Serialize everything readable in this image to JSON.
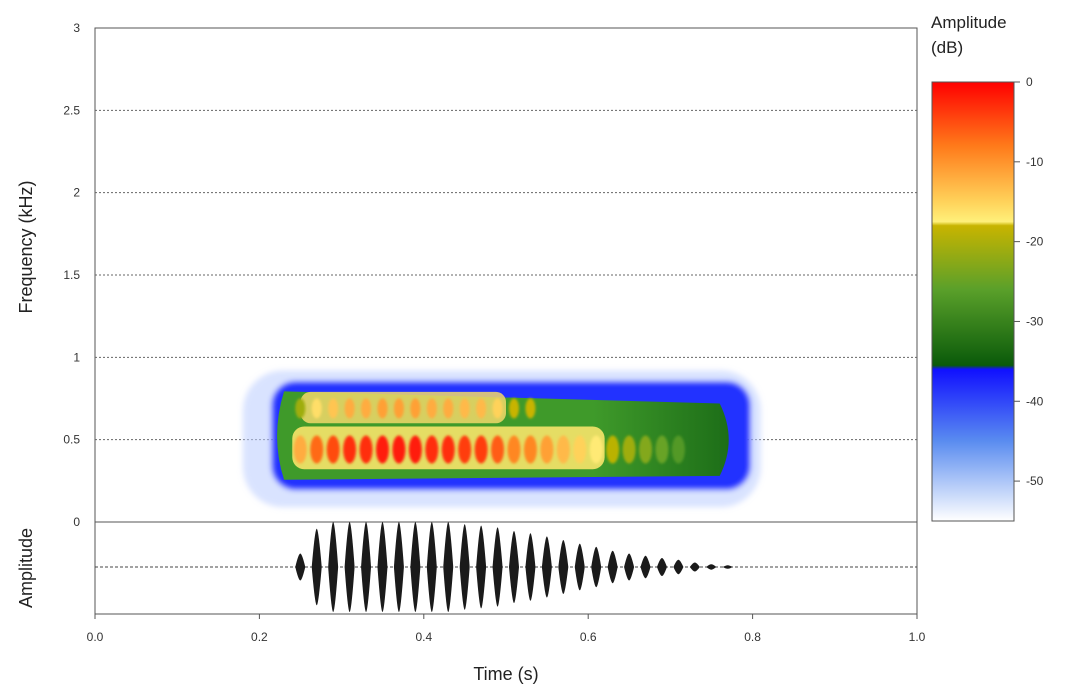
{
  "chart_data": [
    {
      "type": "heatmap",
      "subtype": "spectrogram",
      "xlabel": "Time (s)",
      "ylabel": "Frequency (kHz)",
      "xlim": [
        0.0,
        1.0
      ],
      "ylim": [
        0,
        3
      ],
      "x_ticks": [
        "0.0",
        "0.2",
        "0.4",
        "0.6",
        "0.8",
        "1.0"
      ],
      "y_ticks": [
        "0",
        "0.5",
        "1",
        "1.5",
        "2",
        "2.5",
        "3"
      ],
      "y_gridlines": "dotted at each y tick",
      "bands": [
        {
          "frequency_khz": 0.5,
          "t_start": 0.23,
          "t_end": 0.79
        },
        {
          "frequency_khz": 0.7,
          "t_start": 0.25,
          "t_end": 0.75
        }
      ],
      "pulse_times": [
        0.24,
        0.26,
        0.28,
        0.3,
        0.32,
        0.34,
        0.36,
        0.38,
        0.4,
        0.42,
        0.44,
        0.46,
        0.48,
        0.5,
        0.52,
        0.54,
        0.56,
        0.58,
        0.6,
        0.62,
        0.64,
        0.66,
        0.68,
        0.7
      ],
      "pulse_peak_db": [
        -12,
        -7,
        -5,
        -3,
        -3,
        -2,
        -2,
        -2,
        -3,
        -3,
        -4,
        -4,
        -6,
        -9,
        -9,
        -11,
        -13,
        -15,
        -17,
        -19,
        -21,
        -23,
        -25,
        -27
      ]
    },
    {
      "type": "line",
      "subtype": "waveform",
      "ylabel": "Amplitude",
      "xlim": [
        0.0,
        1.0
      ],
      "pulse_times": [
        0.24,
        0.26,
        0.28,
        0.3,
        0.32,
        0.34,
        0.36,
        0.38,
        0.4,
        0.42,
        0.44,
        0.46,
        0.48,
        0.5,
        0.52,
        0.54,
        0.56,
        0.58,
        0.6,
        0.62,
        0.64,
        0.66,
        0.68,
        0.7,
        0.72,
        0.74,
        0.76
      ],
      "pulse_amplitude": [
        0.3,
        0.85,
        1.0,
        1.0,
        1.0,
        1.0,
        1.0,
        1.0,
        1.0,
        1.0,
        0.95,
        0.92,
        0.88,
        0.8,
        0.75,
        0.68,
        0.6,
        0.52,
        0.45,
        0.36,
        0.3,
        0.25,
        0.2,
        0.16,
        0.1,
        0.06,
        0.04
      ]
    },
    {
      "type": "colorbar",
      "label": "Amplitude (dB)",
      "label_lines": [
        "Amplitude",
        "(dB)"
      ],
      "range": [
        -55,
        0
      ],
      "ticks": [
        "0",
        "-10",
        "-20",
        "-30",
        "-40",
        "-50"
      ],
      "colormap": [
        {
          "db": 0,
          "color": "#ff0000"
        },
        {
          "db": -8,
          "color": "#ff7a1a"
        },
        {
          "db": -15,
          "color": "#ffd25a"
        },
        {
          "db": -17.5,
          "color": "#fff07a"
        },
        {
          "db": -18,
          "color": "#c8b400"
        },
        {
          "db": -26,
          "color": "#5aa02a"
        },
        {
          "db": -35.5,
          "color": "#0a5a0a"
        },
        {
          "db": -36,
          "color": "#1010ff"
        },
        {
          "db": -45,
          "color": "#5a8cf0"
        },
        {
          "db": -55,
          "color": "#ffffff"
        }
      ]
    }
  ]
}
